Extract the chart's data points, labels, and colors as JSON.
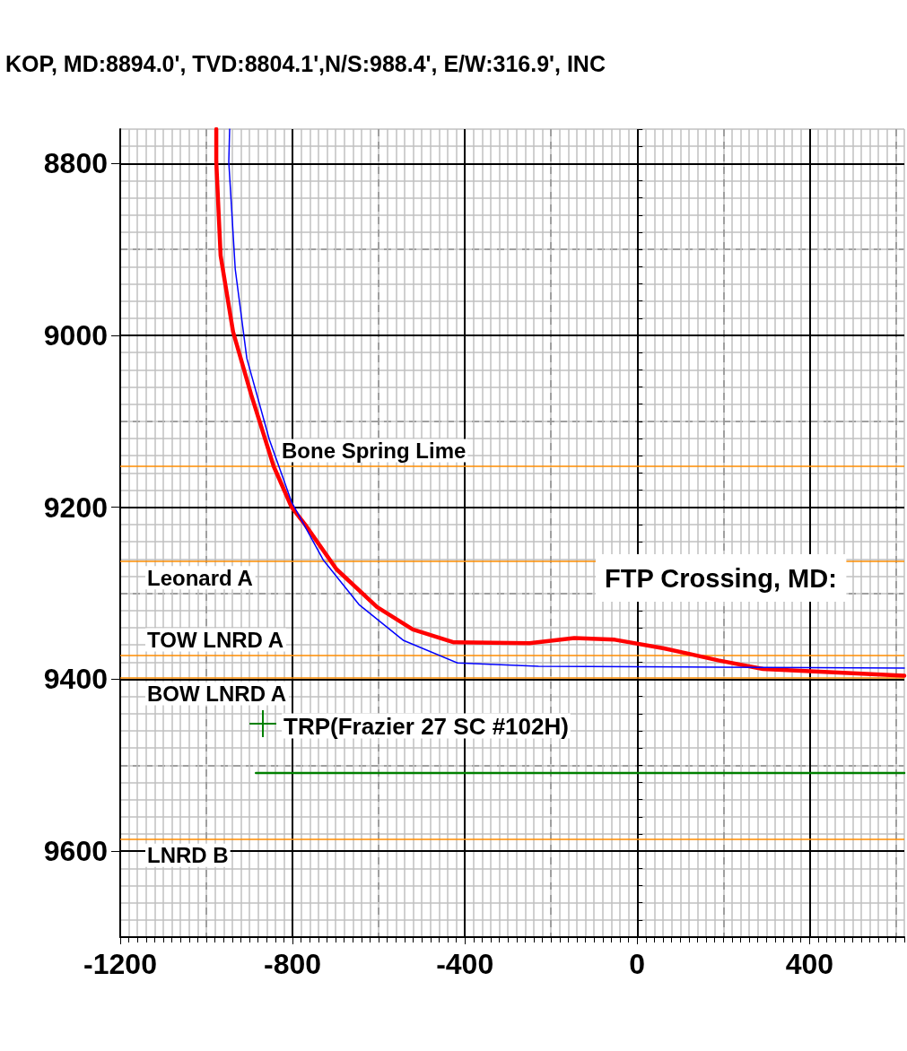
{
  "chart_data": {
    "type": "line",
    "xlim": [
      -1200,
      620
    ],
    "ylim": [
      9700,
      8760
    ],
    "xticks": [
      -1200,
      -800,
      -400,
      0,
      400
    ],
    "yticks": [
      8800,
      9000,
      9200,
      9400,
      9600
    ],
    "grid": true,
    "marker": "none",
    "line_style": "solid",
    "series": [
      {
        "color": "#ff0000",
        "x": [
          -977,
          -977,
          -967,
          -938,
          -896,
          -844,
          -802,
          -771,
          -698,
          -604,
          -521,
          -427,
          -250,
          -146,
          -52,
          62,
          188,
          292,
          500,
          620
        ],
        "values": [
          8760,
          8798,
          8907,
          8996,
          9069,
          9152,
          9200,
          9220,
          9272,
          9316,
          9342,
          9357,
          9358,
          9352,
          9354,
          9364,
          9378,
          9388,
          9393,
          9396
        ]
      },
      {
        "color": "#0000ff",
        "x": [
          -946,
          -948,
          -933,
          -906,
          -854,
          -802,
          -729,
          -646,
          -542,
          -417,
          -229,
          188,
          620
        ],
        "values": [
          8760,
          8798,
          8923,
          9027,
          9121,
          9194,
          9261,
          9313,
          9355,
          9381,
          9385,
          9386,
          9387
        ]
      },
      {
        "color": "#008000",
        "x": [
          -885,
          620
        ],
        "values": [
          9509,
          9509
        ]
      }
    ],
    "ref_lines": [
      {
        "axis": "y",
        "value": 9152,
        "label": "Bone Spring Lime",
        "color": "#ff8c00"
      },
      {
        "axis": "y",
        "value": 9263,
        "label": "Leonard A",
        "color": "#ff8c00"
      },
      {
        "axis": "y",
        "value": 9372,
        "label": "TOW LNRD A",
        "color": "#ff8c00"
      },
      {
        "axis": "y",
        "value": 9398,
        "label": "BOW LNRD A",
        "color": "#ff8c00"
      },
      {
        "axis": "y",
        "value": 9586,
        "label": "LNRD B",
        "color": "#ff8c00"
      }
    ],
    "annotations": [
      "KOP, MD:8894.0', TVD:8804.1',N/S:988.4', E/W:316.9', INC",
      "FTP Crossing, MD:",
      "TRP(Frazier 27 SC #102H)"
    ]
  }
}
